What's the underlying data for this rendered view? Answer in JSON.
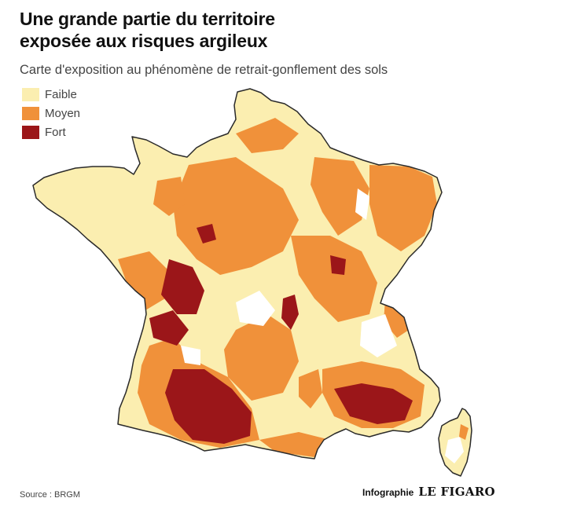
{
  "title_line1": "Une grande partie du territoire",
  "title_line2": "exposée aux risques argileux",
  "subtitle": "Carte d'exposition au phénomène de retrait-gonflement des sols",
  "legend": [
    {
      "label": "Faible",
      "color": "#fbeeb0"
    },
    {
      "label": "Moyen",
      "color": "#f0913a"
    },
    {
      "label": "Fort",
      "color": "#9b1619"
    }
  ],
  "source": "Source : BRGM",
  "credit_label": "Infographie",
  "credit_brand": "LE FIGARO",
  "colors": {
    "background": "#ffffff",
    "none": "#ffffff",
    "outline": "#2a2a2a"
  }
}
